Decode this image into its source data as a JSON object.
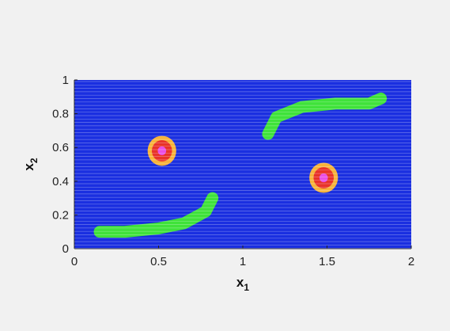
{
  "chart_data": {
    "type": "heatmap",
    "xlabel": "x",
    "xlabel_subscript": "1",
    "ylabel": "x",
    "ylabel_subscript": "2",
    "xlim": [
      0,
      2
    ],
    "ylim": [
      0,
      1
    ],
    "x_ticks": [
      0,
      0.5,
      1,
      1.5,
      2
    ],
    "x_tick_labels": [
      "0",
      "0.5",
      "1",
      "1.5",
      "2"
    ],
    "y_ticks": [
      0,
      0.2,
      0.4,
      0.6,
      0.8,
      1
    ],
    "y_tick_labels": [
      "0",
      "0.2",
      "0.4",
      "0.6",
      "0.8",
      "1"
    ],
    "grid": false,
    "colors": {
      "background": "#1a2fe0",
      "green": "#3fe23a",
      "orange": "#f7b33a",
      "red": "#e8322a",
      "magenta": "#e94fe6"
    },
    "blobs": [
      {
        "center": [
          0.52,
          0.58
        ],
        "radii": {
          "orange": 0.085,
          "red": 0.06,
          "magenta": 0.025
        }
      },
      {
        "center": [
          1.48,
          0.42
        ],
        "radii": {
          "orange": 0.085,
          "red": 0.06,
          "magenta": 0.025
        }
      }
    ],
    "arcs": [
      {
        "points": [
          [
            1.15,
            0.68
          ],
          [
            1.2,
            0.78
          ],
          [
            1.35,
            0.84
          ],
          [
            1.55,
            0.86
          ],
          [
            1.75,
            0.86
          ],
          [
            1.82,
            0.89
          ]
        ],
        "thickness": 0.07
      },
      {
        "points": [
          [
            0.15,
            0.1
          ],
          [
            0.3,
            0.1
          ],
          [
            0.5,
            0.12
          ],
          [
            0.65,
            0.15
          ],
          [
            0.78,
            0.22
          ],
          [
            0.82,
            0.3
          ]
        ],
        "thickness": 0.07
      }
    ]
  }
}
